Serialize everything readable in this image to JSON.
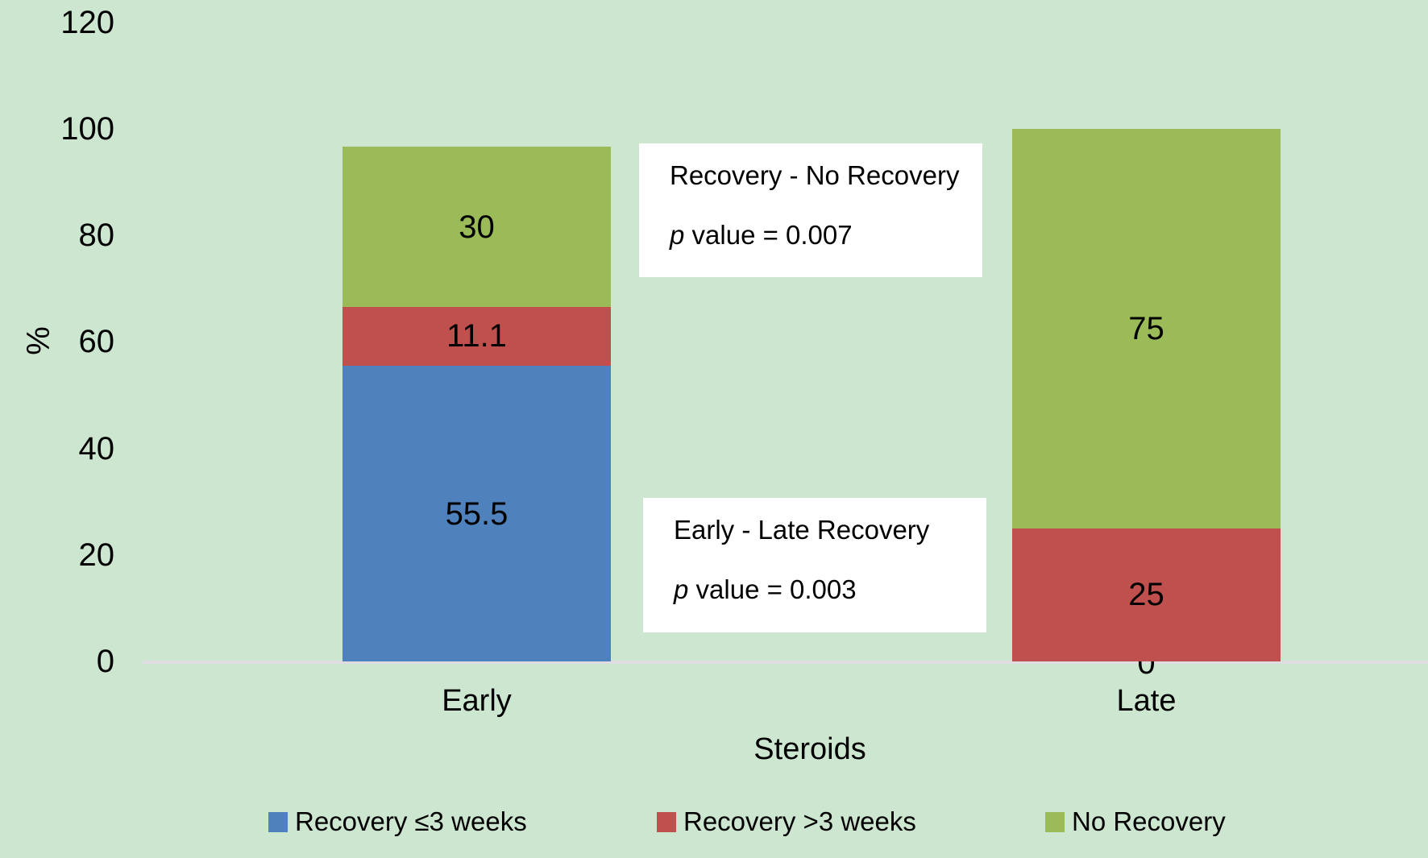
{
  "chart_data": {
    "type": "bar",
    "stacked": true,
    "categories": [
      "Early",
      "Late"
    ],
    "series": [
      {
        "name": "Recovery ≤3 weeks",
        "color": "#4f81bd",
        "values": [
          55.5,
          0
        ]
      },
      {
        "name": "Recovery >3 weeks",
        "color": "#c0504d",
        "values": [
          11.1,
          25
        ]
      },
      {
        "name": "No Recovery",
        "color": "#9bbb59",
        "values": [
          30,
          75
        ]
      }
    ],
    "xlabel": "Steroids",
    "ylabel": "%",
    "yticks": [
      0,
      20,
      40,
      60,
      80,
      100,
      120
    ],
    "ylim": [
      0,
      120
    ],
    "grid": false,
    "legend_position": "bottom",
    "data_labels_shown": true,
    "colors": {
      "background": "#cde6cf",
      "axis_line": "#e0dde2",
      "annotation_box": "#ffffff",
      "text": "#000000"
    },
    "annotations": [
      {
        "line1": "Recovery - No Recovery",
        "p_italic": "p",
        "p_rest": " value = 0.007"
      },
      {
        "line1": "Early - Late Recovery",
        "p_italic": "p",
        "p_rest": " value = 0.003"
      }
    ]
  }
}
